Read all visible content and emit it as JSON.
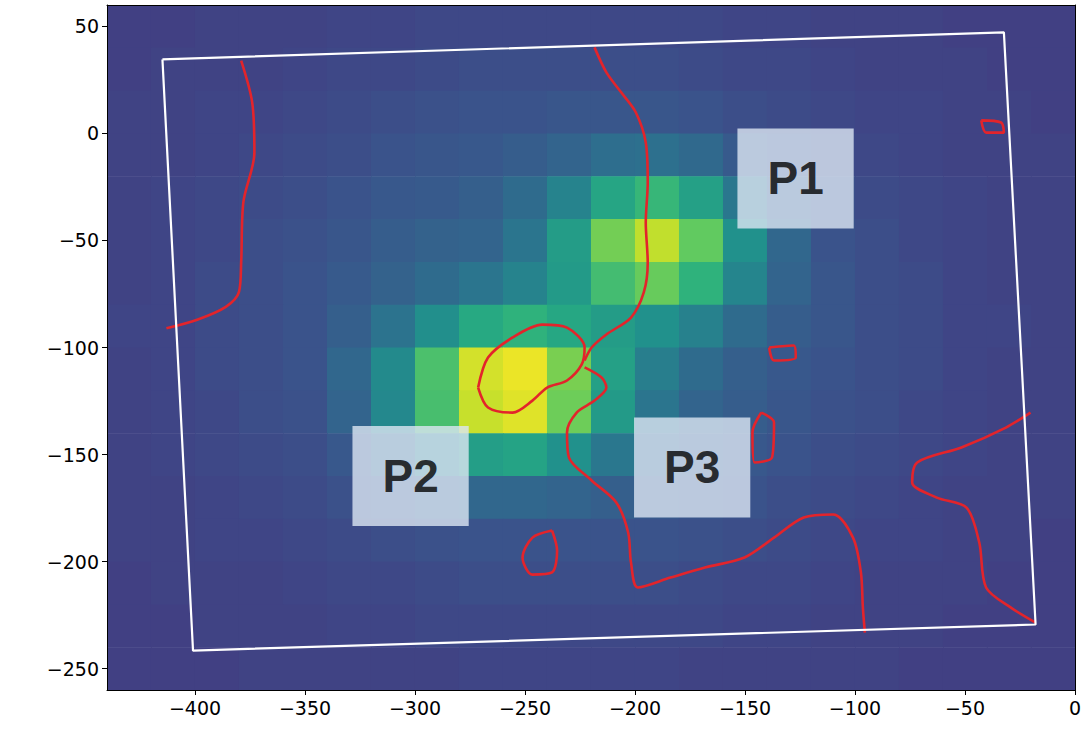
{
  "chart_data": {
    "type": "heatmap",
    "xlim": [
      -440,
      0
    ],
    "ylim": [
      -260,
      60
    ],
    "xticks": [
      {
        "value": -400,
        "label": "−400"
      },
      {
        "value": -350,
        "label": "−350"
      },
      {
        "value": -300,
        "label": "−300"
      },
      {
        "value": -250,
        "label": "−250"
      },
      {
        "value": -200,
        "label": "−200"
      },
      {
        "value": -150,
        "label": "−150"
      },
      {
        "value": -100,
        "label": "−100"
      },
      {
        "value": -50,
        "label": "−50"
      },
      0
    ],
    "yticks": [
      {
        "value": -250,
        "label": "−250"
      },
      {
        "value": -200,
        "label": "−200"
      },
      {
        "value": -150,
        "label": "−150"
      },
      {
        "value": -100,
        "label": "−100"
      },
      {
        "value": -50,
        "label": "−50"
      },
      0,
      50
    ],
    "grid": false,
    "color_range": [
      0,
      106
    ],
    "cell_x": [
      -430,
      -410,
      -390,
      -370,
      -350,
      -330,
      -310,
      -290,
      -270,
      -250,
      -230,
      -210,
      -190,
      -170,
      -150,
      -130,
      -110,
      -90,
      -70,
      -50,
      -30,
      -10
    ],
    "cell_y": [
      50,
      30,
      10,
      -10,
      -30,
      -50,
      -70,
      -90,
      -110,
      -130,
      -150,
      -170,
      -190,
      -210,
      -230,
      -250
    ],
    "cells": [
      [
        20,
        20,
        21,
        21,
        21,
        22,
        22,
        23,
        23,
        23,
        23,
        23,
        23,
        23,
        22,
        22,
        21,
        21,
        21,
        20,
        20,
        20
      ],
      [
        20,
        21,
        21,
        21,
        22,
        23,
        23,
        24,
        25,
        25,
        25,
        25,
        25,
        24,
        23,
        23,
        22,
        21,
        21,
        21,
        20,
        20
      ],
      [
        21,
        21,
        22,
        22,
        23,
        24,
        25,
        26,
        27,
        27,
        28,
        28,
        28,
        27,
        25,
        24,
        23,
        22,
        22,
        21,
        21,
        20
      ],
      [
        21,
        21,
        22,
        23,
        24,
        25,
        27,
        28,
        29,
        31,
        34,
        38,
        39,
        36,
        30,
        26,
        24,
        23,
        22,
        21,
        21,
        21
      ],
      [
        21,
        22,
        23,
        24,
        25,
        27,
        29,
        30,
        32,
        37,
        47,
        62,
        70,
        60,
        42,
        31,
        26,
        24,
        23,
        22,
        21,
        21
      ],
      [
        21,
        22,
        23,
        25,
        26,
        28,
        31,
        33,
        34,
        41,
        58,
        83,
        96,
        80,
        53,
        35,
        27,
        25,
        23,
        22,
        21,
        21
      ],
      [
        21,
        22,
        24,
        25,
        27,
        30,
        33,
        37,
        41,
        47,
        57,
        73,
        81,
        68,
        48,
        34,
        28,
        25,
        24,
        22,
        21,
        21
      ],
      [
        22,
        22,
        24,
        25,
        27,
        32,
        40,
        52,
        64,
        68,
        63,
        58,
        53,
        46,
        37,
        31,
        28,
        25,
        24,
        22,
        22,
        21
      ],
      [
        21,
        22,
        24,
        25,
        27,
        35,
        50,
        75,
        99,
        103,
        84,
        60,
        45,
        37,
        32,
        29,
        27,
        25,
        24,
        22,
        21,
        21
      ],
      [
        21,
        22,
        23,
        25,
        26,
        34,
        49,
        74,
        97,
        101,
        82,
        57,
        41,
        34,
        31,
        28,
        26,
        25,
        23,
        22,
        21,
        21
      ],
      [
        21,
        22,
        23,
        24,
        25,
        29,
        37,
        48,
        59,
        61,
        53,
        42,
        35,
        31,
        29,
        27,
        25,
        24,
        23,
        22,
        21,
        21
      ],
      [
        21,
        21,
        22,
        23,
        24,
        26,
        28,
        32,
        35,
        35,
        34,
        32,
        30,
        28,
        27,
        25,
        24,
        23,
        22,
        21,
        21,
        21
      ],
      [
        21,
        21,
        22,
        22,
        23,
        24,
        25,
        26,
        27,
        27,
        27,
        27,
        27,
        26,
        25,
        24,
        23,
        22,
        22,
        21,
        21,
        20
      ],
      [
        20,
        21,
        21,
        21,
        22,
        23,
        23,
        24,
        25,
        25,
        25,
        25,
        25,
        24,
        23,
        23,
        22,
        21,
        21,
        21,
        20,
        20
      ],
      [
        20,
        20,
        21,
        21,
        21,
        22,
        22,
        23,
        23,
        23,
        23,
        23,
        23,
        23,
        22,
        22,
        21,
        21,
        21,
        20,
        20,
        20
      ],
      [
        20,
        20,
        20,
        21,
        21,
        21,
        21,
        21,
        22,
        22,
        22,
        22,
        22,
        21,
        21,
        21,
        21,
        21,
        20,
        20,
        20,
        20
      ]
    ],
    "contours": {
      "color": "#e3242b",
      "lines": [
        [
          [
            -379,
            34
          ],
          [
            -374,
            14.5
          ],
          [
            -373,
            -9
          ],
          [
            -378,
            -32
          ],
          [
            -379,
            -60
          ],
          [
            -380,
            -74
          ],
          [
            -386,
            -81
          ],
          [
            -399,
            -87
          ],
          [
            -413,
            -91
          ]
        ],
        [
          [
            -218.4,
            40.2
          ],
          [
            -213,
            28.5
          ],
          [
            -206.3,
            19.2
          ],
          [
            -199.6,
            9.8
          ],
          [
            -195.1,
            -4.2
          ],
          [
            -194.2,
            -22.9
          ],
          [
            -195.1,
            -41.6
          ],
          [
            -194.2,
            -60.3
          ],
          [
            -196,
            -74.3
          ],
          [
            -201.8,
            -86
          ],
          [
            -213,
            -93.9
          ],
          [
            -219.7,
            -100
          ],
          [
            -222.9,
            -106.1
          ]
        ],
        [
          [
            -271.3,
            -118.7
          ],
          [
            -266.8,
            -104.7
          ],
          [
            -255.6,
            -95.3
          ],
          [
            -242.2,
            -89.3
          ],
          [
            -230.9,
            -90.7
          ],
          [
            -222.9,
            -100
          ],
          [
            -224.2,
            -107.9
          ],
          [
            -230.9,
            -115.4
          ],
          [
            -239.9,
            -118.7
          ],
          [
            -246.6,
            -124.8
          ],
          [
            -255.6,
            -130.4
          ],
          [
            -266.8,
            -128
          ],
          [
            -271.3,
            -118.7
          ]
        ],
        [
          [
            -222.9,
            -109.3
          ],
          [
            -215.2,
            -114
          ],
          [
            -213,
            -118.7
          ],
          [
            -218.4,
            -124.8
          ],
          [
            -226.5,
            -130.4
          ],
          [
            -230.9,
            -139.7
          ],
          [
            -230,
            -151.4
          ],
          [
            -219.7,
            -162.1
          ],
          [
            -208.5,
            -172.4
          ],
          [
            -203.1,
            -186.4
          ],
          [
            -201.8,
            -200.5
          ],
          [
            -198.7,
            -212.1
          ],
          [
            -183.9,
            -207.5
          ],
          [
            -168.2,
            -202.8
          ],
          [
            -150.2,
            -198.1
          ],
          [
            -136.8,
            -188.8
          ],
          [
            -123.3,
            -179.4
          ],
          [
            -109.9,
            -178
          ],
          [
            -100.9,
            -188.8
          ],
          [
            -97.3,
            -205.1
          ],
          [
            -96.4,
            -221.5
          ],
          [
            -95.5,
            -233.2
          ]
        ],
        [
          [
            -237.7,
            -185.5
          ],
          [
            -246.6,
            -188.8
          ],
          [
            -251.1,
            -198.1
          ],
          [
            -246.6,
            -206.1
          ],
          [
            -237.7,
            -205.1
          ],
          [
            -235.4,
            -194.9
          ],
          [
            -237.7,
            -185.5
          ]
        ],
        [
          [
            -142.6,
            -130.4
          ],
          [
            -136.8,
            -135
          ],
          [
            -137.7,
            -151.4
          ],
          [
            -145.7,
            -153.7
          ],
          [
            -146.6,
            -139.7
          ],
          [
            -142.6,
            -130.4
          ]
        ],
        [
          [
            -139,
            -100
          ],
          [
            -127.8,
            -99.1
          ],
          [
            -126.9,
            -104.7
          ],
          [
            -136.8,
            -106.1
          ],
          [
            -139,
            -100
          ]
        ],
        [
          [
            -20.2,
            -130.4
          ],
          [
            -31.4,
            -137.4
          ],
          [
            -51.6,
            -146.7
          ],
          [
            -71.7,
            -153.7
          ],
          [
            -74,
            -163.1
          ],
          [
            -62.8,
            -170.1
          ],
          [
            -49.3,
            -174.8
          ],
          [
            -43.5,
            -191.1
          ],
          [
            -40.4,
            -212.1
          ],
          [
            -29.1,
            -221.5
          ],
          [
            -17.9,
            -228.5
          ]
        ],
        [
          [
            -42.6,
            6.1
          ],
          [
            -33.6,
            5.1
          ],
          [
            -32.3,
            0.4
          ],
          [
            -40.4,
            0.4
          ],
          [
            -42.6,
            6.1
          ]
        ]
      ]
    },
    "frame": {
      "color": "#ffffff",
      "points": [
        [
          -414.8,
          34.6
        ],
        [
          -32.3,
          47.2
        ],
        [
          -17.9,
          -229.4
        ],
        [
          -400.9,
          -241.6
        ],
        [
          -414.8,
          34.6
        ]
      ]
    },
    "annotations": [
      {
        "text": "P1",
        "x": -127,
        "y": -21
      },
      {
        "text": "P2",
        "x": -302,
        "y": -160
      },
      {
        "text": "P3",
        "x": -174,
        "y": -156
      }
    ]
  }
}
